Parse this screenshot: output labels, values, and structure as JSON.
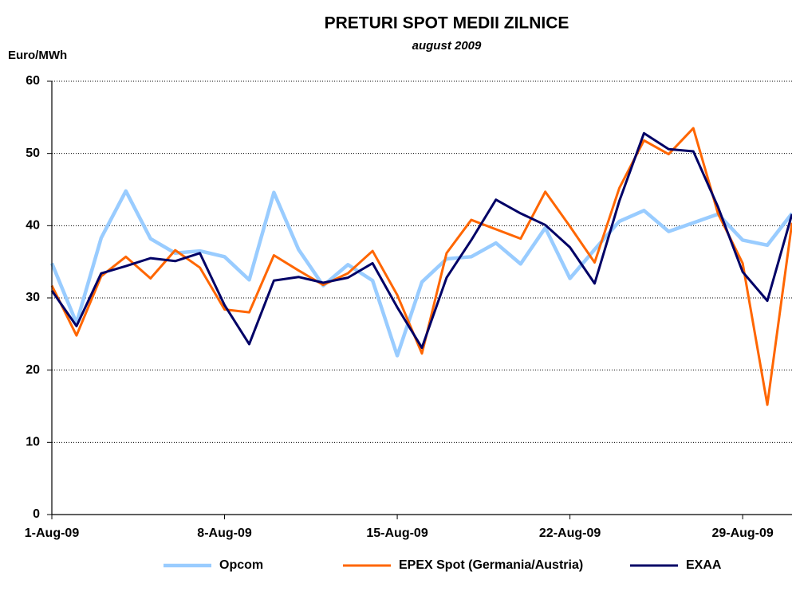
{
  "chart_data": {
    "type": "line",
    "title": "PRETURI SPOT MEDII ZILNICE",
    "subtitle": "august 2009",
    "y_label": "Euro/MWh",
    "categories": [
      "1-Aug-09",
      null,
      null,
      null,
      null,
      null,
      null,
      "8-Aug-09",
      null,
      null,
      null,
      null,
      null,
      null,
      "15-Aug-09",
      null,
      null,
      null,
      null,
      null,
      null,
      "22-Aug-09",
      null,
      null,
      null,
      null,
      null,
      null,
      "29-Aug-09",
      null,
      null
    ],
    "series": [
      {
        "name": "Opcom",
        "color": "#99ccff",
        "width": 4.5,
        "values": [
          34.8,
          26.5,
          38.3,
          44.8,
          38.2,
          36.2,
          36.5,
          35.7,
          32.5,
          44.6,
          36.7,
          31.7,
          34.6,
          32.4,
          22.0,
          32.2,
          35.4,
          35.7,
          37.6,
          34.7,
          39.7,
          32.7,
          36.7,
          40.6,
          42.1,
          39.2,
          40.4,
          41.6,
          38.0,
          37.3,
          41.7
        ]
      },
      {
        "name": "EPEX Spot (Germania/Austria)",
        "color": "#ff6600",
        "width": 3,
        "values": [
          31.7,
          24.8,
          33.0,
          35.7,
          32.7,
          36.6,
          34.2,
          28.4,
          28.0,
          35.9,
          33.8,
          31.8,
          33.4,
          36.5,
          30.4,
          22.3,
          36.2,
          40.8,
          39.5,
          38.2,
          44.7,
          39.9,
          34.9,
          45.2,
          51.8,
          49.9,
          53.5,
          41.7,
          34.8,
          15.2,
          40.4
        ]
      },
      {
        "name": "EXAA",
        "color": "#000066",
        "width": 3,
        "values": [
          31.0,
          26.1,
          33.4,
          34.4,
          35.5,
          35.1,
          36.2,
          29.0,
          23.6,
          32.4,
          32.9,
          32.1,
          32.8,
          34.8,
          28.7,
          23.1,
          32.8,
          38.0,
          43.6,
          41.7,
          40.1,
          37.0,
          32.0,
          43.4,
          52.8,
          50.6,
          50.3,
          42.6,
          33.6,
          29.6,
          41.6
        ]
      }
    ],
    "ylim": [
      0,
      60
    ],
    "yticks": [
      0,
      10,
      20,
      30,
      40,
      50,
      60
    ],
    "grid": true,
    "legend": "bottom"
  }
}
